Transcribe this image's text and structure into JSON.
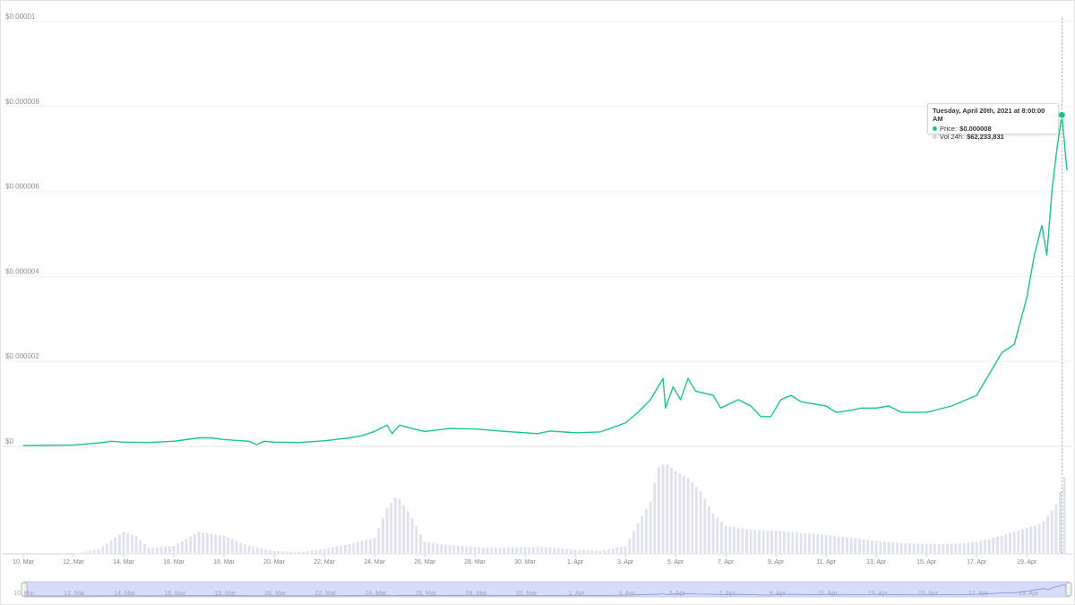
{
  "chart_data": {
    "type": "line",
    "title": "",
    "y_ticks": [
      "$0",
      "$0.000002",
      "$0.000004",
      "$0.000006",
      "$0.000008",
      "$0.00001"
    ],
    "ylim": [
      0,
      1e-05
    ],
    "grid": true,
    "x_tick_labels": [
      "10. Mar",
      "12. Mar",
      "14. Mar",
      "16. Mar",
      "18. Mar",
      "20. Mar",
      "22. Mar",
      "24. Mar",
      "26. Mar",
      "28. Mar",
      "30. Mar",
      "1. Apr",
      "3. Apr",
      "5. Apr",
      "7. Apr",
      "9. Apr",
      "11. Apr",
      "13. Apr",
      "15. Apr",
      "17. Apr",
      "19. Apr"
    ],
    "x_range_days": [
      0,
      41.6
    ],
    "price_series": {
      "name": "Price",
      "color": "#16c784",
      "points": [
        [
          0,
          2e-08
        ],
        [
          2,
          3e-08
        ],
        [
          3,
          8e-08
        ],
        [
          3.5,
          1.2e-07
        ],
        [
          4,
          1e-07
        ],
        [
          5,
          9e-08
        ],
        [
          6,
          1.2e-07
        ],
        [
          7,
          2e-07
        ],
        [
          7.5,
          2e-07
        ],
        [
          8,
          1.6e-07
        ],
        [
          9,
          1.2e-07
        ],
        [
          9.3,
          4e-08
        ],
        [
          9.6,
          1.2e-07
        ],
        [
          10,
          1e-07
        ],
        [
          11,
          9e-08
        ],
        [
          12,
          1.3e-07
        ],
        [
          13,
          2e-07
        ],
        [
          13.5,
          2.5e-07
        ],
        [
          14,
          3.5e-07
        ],
        [
          14.5,
          5e-07
        ],
        [
          14.7,
          3e-07
        ],
        [
          15,
          5e-07
        ],
        [
          15.5,
          4.2e-07
        ],
        [
          16,
          3.5e-07
        ],
        [
          17,
          4.2e-07
        ],
        [
          18,
          4.1e-07
        ],
        [
          19,
          3.6e-07
        ],
        [
          20,
          3.2e-07
        ],
        [
          20.5,
          3e-07
        ],
        [
          21,
          3.6e-07
        ],
        [
          22,
          3.2e-07
        ],
        [
          23,
          3.4e-07
        ],
        [
          24,
          5.5e-07
        ],
        [
          24.5,
          8e-07
        ],
        [
          25,
          1.1e-06
        ],
        [
          25.3,
          1.4e-06
        ],
        [
          25.5,
          1.6e-06
        ],
        [
          25.6,
          9e-07
        ],
        [
          25.9,
          1.4e-06
        ],
        [
          26.2,
          1.1e-06
        ],
        [
          26.5,
          1.6e-06
        ],
        [
          26.8,
          1.3e-06
        ],
        [
          27.5,
          1.2e-06
        ],
        [
          27.8,
          9e-07
        ],
        [
          28.5,
          1.1e-06
        ],
        [
          29.0,
          9.5e-07
        ],
        [
          29.4,
          7e-07
        ],
        [
          29.8,
          7e-07
        ],
        [
          30.2,
          1.1e-06
        ],
        [
          30.6,
          1.2e-06
        ],
        [
          31.0,
          1.05e-06
        ],
        [
          32.0,
          9.5e-07
        ],
        [
          32.4,
          8e-07
        ],
        [
          33.0,
          8.5e-07
        ],
        [
          33.4,
          9e-07
        ],
        [
          34.0,
          9e-07
        ],
        [
          34.5,
          9.5e-07
        ],
        [
          35.0,
          8e-07
        ],
        [
          36.0,
          8e-07
        ],
        [
          37.0,
          9.5e-07
        ],
        [
          38.0,
          1.2e-06
        ],
        [
          38.5,
          1.7e-06
        ],
        [
          39.0,
          2.2e-06
        ],
        [
          39.5,
          2.4e-06
        ],
        [
          40.0,
          3.5e-06
        ],
        [
          40.3,
          4.5e-06
        ],
        [
          40.6,
          5.2e-06
        ],
        [
          40.8,
          4.5e-06
        ],
        [
          41.0,
          6e-06
        ],
        [
          41.2,
          7e-06
        ],
        [
          41.4,
          7.8e-06
        ],
        [
          41.6,
          6.5e-06
        ]
      ]
    },
    "volume_series": {
      "name": "Vol 24h",
      "color": "#dde1ec",
      "points": [
        [
          0,
          0.0
        ],
        [
          2,
          0.0
        ],
        [
          3,
          0.05
        ],
        [
          4,
          0.22
        ],
        [
          4.5,
          0.18
        ],
        [
          5,
          0.06
        ],
        [
          6,
          0.08
        ],
        [
          7,
          0.22
        ],
        [
          8,
          0.18
        ],
        [
          9,
          0.08
        ],
        [
          10,
          0.03
        ],
        [
          11,
          0.02
        ],
        [
          12,
          0.05
        ],
        [
          13,
          0.1
        ],
        [
          14,
          0.16
        ],
        [
          14.5,
          0.45
        ],
        [
          14.9,
          0.58
        ],
        [
          15.4,
          0.4
        ],
        [
          16,
          0.12
        ],
        [
          17,
          0.09
        ],
        [
          18,
          0.07
        ],
        [
          19,
          0.06
        ],
        [
          20,
          0.07
        ],
        [
          21,
          0.07
        ],
        [
          22,
          0.04
        ],
        [
          23,
          0.03
        ],
        [
          24,
          0.08
        ],
        [
          24.5,
          0.3
        ],
        [
          25,
          0.52
        ],
        [
          25.3,
          0.85
        ],
        [
          25.6,
          0.9
        ],
        [
          26.0,
          0.82
        ],
        [
          26.5,
          0.75
        ],
        [
          27.0,
          0.62
        ],
        [
          27.5,
          0.4
        ],
        [
          28,
          0.28
        ],
        [
          29,
          0.24
        ],
        [
          30,
          0.23
        ],
        [
          31,
          0.21
        ],
        [
          32,
          0.19
        ],
        [
          33,
          0.16
        ],
        [
          34,
          0.13
        ],
        [
          35,
          0.11
        ],
        [
          36,
          0.1
        ],
        [
          37,
          0.1
        ],
        [
          38,
          0.12
        ],
        [
          39,
          0.18
        ],
        [
          40,
          0.26
        ],
        [
          40.6,
          0.3
        ],
        [
          41.2,
          0.5
        ],
        [
          41.6,
          0.85
        ]
      ]
    },
    "tooltip": {
      "title": "Tuesday, April 20th, 2021 at 8:00:00 AM",
      "rows": [
        {
          "label": "Price:",
          "value": "$0.000008",
          "color": "#16c784"
        },
        {
          "label": "Vol 24h:",
          "value": "$62,233,831",
          "color": "#cfd3e0"
        }
      ]
    }
  }
}
